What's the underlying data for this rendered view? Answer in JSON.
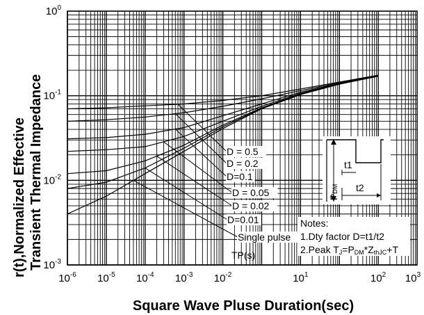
{
  "chart_data": {
    "type": "line",
    "xlabel": "Square Wave Pluse Duration(sec)",
    "ylabel_line1": "r(t),Normalized Effective",
    "ylabel_line2": "Transient Thermal Impedance",
    "x_scale": "log",
    "y_scale": "log",
    "xlim": [
      1e-06,
      1000
    ],
    "ylim": [
      0.001,
      1
    ],
    "x_tick_labels": [
      {
        "base": "10",
        "exp": "-6"
      },
      {
        "base": "10",
        "exp": "-5"
      },
      {
        "base": "10",
        "exp": "-4"
      },
      {
        "base": "10",
        "exp": "-3"
      },
      {
        "base": "10",
        "exp": "-2"
      },
      {
        "base": "10",
        "exp": "1"
      },
      {
        "base": "10",
        "exp": "2"
      },
      {
        "base": "10",
        "exp": "3"
      }
    ],
    "y_tick_labels": [
      {
        "base": "10",
        "exp": "-3"
      },
      {
        "base": "10",
        "exp": "-2"
      },
      {
        "base": "10",
        "exp": "-1"
      },
      {
        "base": "10",
        "exp": "0"
      }
    ],
    "grid": true,
    "series": [
      {
        "name": "D = 0.5",
        "x": [
          1e-06,
          1e-05,
          0.0001,
          0.001,
          0.01,
          0.1,
          1,
          10,
          100
        ],
        "y": [
          0.07,
          0.072,
          0.076,
          0.08,
          0.088,
          0.1,
          0.12,
          0.145,
          0.175
        ]
      },
      {
        "name": "D = 0.2",
        "x": [
          1e-06,
          1e-05,
          0.0001,
          0.001,
          0.01,
          0.1,
          1,
          10,
          100
        ],
        "y": [
          0.05,
          0.052,
          0.056,
          0.063,
          0.075,
          0.092,
          0.115,
          0.142,
          0.174
        ]
      },
      {
        "name": "D=0.1",
        "x": [
          1e-06,
          1e-05,
          0.0001,
          0.001,
          0.01,
          0.1,
          1,
          10,
          100
        ],
        "y": [
          0.031,
          0.032,
          0.035,
          0.042,
          0.058,
          0.08,
          0.11,
          0.14,
          0.173
        ]
      },
      {
        "name": "D = 0.05",
        "x": [
          1e-06,
          1e-05,
          0.0001,
          0.001,
          0.01,
          0.1,
          1,
          10,
          100
        ],
        "y": [
          0.022,
          0.023,
          0.025,
          0.033,
          0.05,
          0.075,
          0.107,
          0.139,
          0.172
        ]
      },
      {
        "name": "D = 0.02",
        "x": [
          1e-06,
          1e-05,
          0.0001,
          0.001,
          0.01,
          0.1,
          1,
          10,
          100
        ],
        "y": [
          0.012,
          0.013,
          0.017,
          0.026,
          0.045,
          0.072,
          0.105,
          0.138,
          0.171
        ]
      },
      {
        "name": "D=0.01",
        "x": [
          1e-06,
          1e-05,
          0.0001,
          0.001,
          0.01,
          0.1,
          1,
          10,
          100
        ],
        "y": [
          0.008,
          0.0095,
          0.014,
          0.024,
          0.043,
          0.071,
          0.104,
          0.137,
          0.171
        ]
      },
      {
        "name": "Single pulse",
        "x": [
          1e-06,
          1e-05,
          0.0001,
          0.001,
          0.01,
          0.1,
          1,
          10,
          100
        ],
        "y": [
          0.004,
          0.0065,
          0.012,
          0.022,
          0.041,
          0.07,
          0.103,
          0.137,
          0.17
        ]
      }
    ],
    "annotations": {
      "notes_title": "Notes:",
      "note1": "1.Dty factor D=t1/t2",
      "note2_pre": "2.Peak T",
      "note2_sub1": "J",
      "note2_mid1": "=P",
      "note2_sub2": "DM",
      "note2_mid2": "*Z",
      "note2_sub3": "thJC",
      "note2_post": "+T",
      "tp_label": "TP(s)",
      "inset_pdm": "P",
      "inset_pdm_sub": "DM",
      "inset_t1": "t1",
      "inset_t2": "t2"
    }
  }
}
